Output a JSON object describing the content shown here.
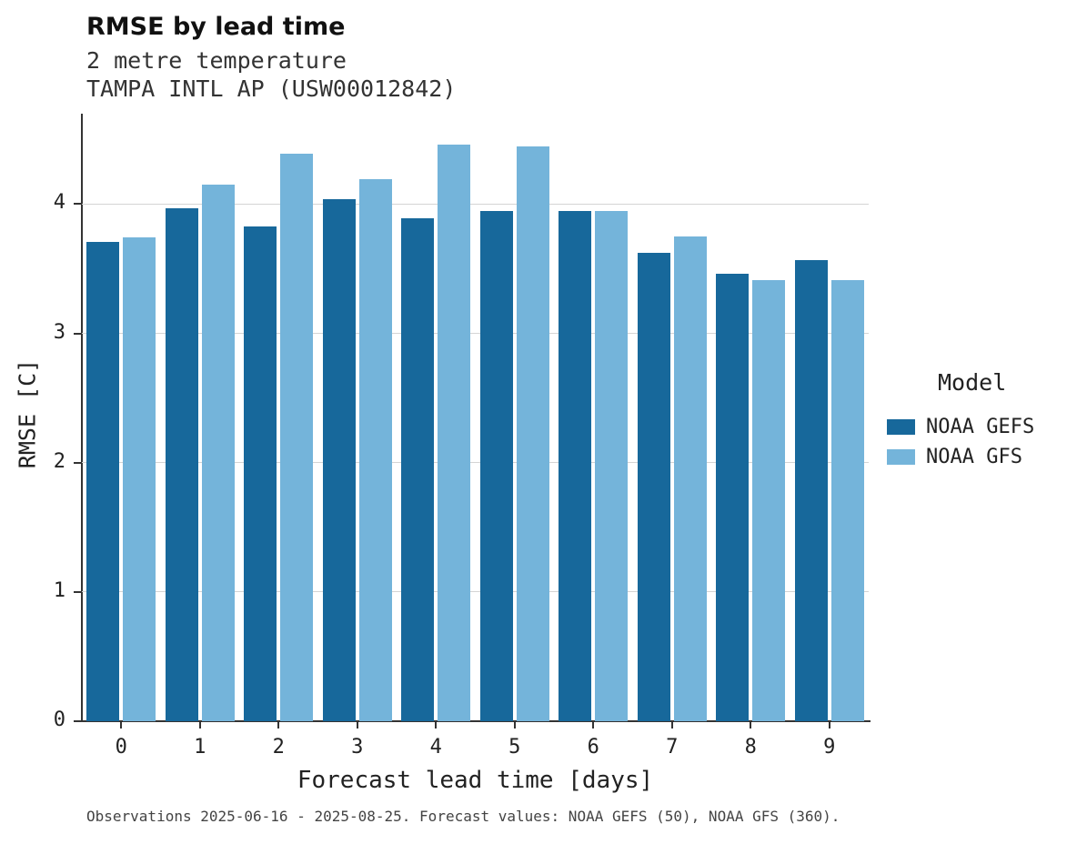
{
  "header": {
    "title": "RMSE by lead time",
    "subtitle1": "2 metre temperature",
    "subtitle2": "TAMPA INTL AP (USW00012842)"
  },
  "footer": {
    "note": "Observations 2025-06-16 - 2025-08-25. Forecast values: NOAA GEFS (50), NOAA GFS (360)."
  },
  "legend": {
    "title": "Model"
  },
  "colors": {
    "gefs": "#17689b",
    "gfs": "#74b4da",
    "gridline": "#d4d4d4",
    "spine": "#333333"
  },
  "chart_data": {
    "type": "bar",
    "title": "RMSE by lead time",
    "subtitle": "2 metre temperature — TAMPA INTL AP (USW00012842)",
    "xlabel": "Forecast lead time [days]",
    "ylabel": "RMSE [C]",
    "categories": [
      "0",
      "1",
      "2",
      "3",
      "4",
      "5",
      "6",
      "7",
      "8",
      "9"
    ],
    "series": [
      {
        "name": "NOAA GEFS",
        "color": "#17689b",
        "values": [
          3.71,
          3.97,
          3.83,
          4.04,
          3.89,
          3.95,
          3.95,
          3.62,
          3.46,
          3.57
        ]
      },
      {
        "name": "NOAA GFS",
        "color": "#74b4da",
        "values": [
          3.74,
          4.15,
          4.39,
          4.19,
          4.46,
          4.45,
          3.95,
          3.75,
          3.41,
          3.41
        ]
      }
    ],
    "ylim": [
      0,
      4.7
    ],
    "yticks": [
      0,
      1,
      2,
      3,
      4
    ],
    "grid": true,
    "legend_position": "right",
    "legend_title": "Model"
  }
}
